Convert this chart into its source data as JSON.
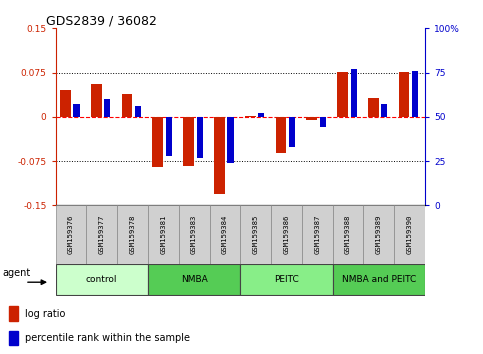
{
  "title": "GDS2839 / 36082",
  "samples": [
    "GSM159376",
    "GSM159377",
    "GSM159378",
    "GSM159381",
    "GSM159383",
    "GSM159384",
    "GSM159385",
    "GSM159386",
    "GSM159387",
    "GSM159388",
    "GSM159389",
    "GSM159390"
  ],
  "log_ratio": [
    0.045,
    0.055,
    0.038,
    -0.085,
    -0.083,
    -0.13,
    0.002,
    -0.062,
    -0.005,
    0.076,
    0.032,
    0.076
  ],
  "percentile_rank": [
    57,
    60,
    56,
    28,
    27,
    24,
    52,
    33,
    44,
    77,
    57,
    76
  ],
  "groups": [
    {
      "label": "control",
      "start": 0,
      "end": 3,
      "color": "#ccffcc"
    },
    {
      "label": "NMBA",
      "start": 3,
      "end": 6,
      "color": "#55cc55"
    },
    {
      "label": "PEITC",
      "start": 6,
      "end": 9,
      "color": "#88ee88"
    },
    {
      "label": "NMBA and PEITC",
      "start": 9,
      "end": 12,
      "color": "#55cc55"
    }
  ],
  "ylim_left": [
    -0.15,
    0.15
  ],
  "ylim_right": [
    0,
    100
  ],
  "yticks_left": [
    -0.15,
    -0.075,
    0,
    0.075,
    0.15
  ],
  "yticks_right": [
    0,
    25,
    50,
    75,
    100
  ],
  "hlines_dotted": [
    0.075,
    -0.075
  ],
  "bar_color_log": "#cc2200",
  "bar_color_pct": "#0000cc",
  "log_bar_width": 0.35,
  "pct_bar_width": 0.2,
  "background_color": "#ffffff",
  "tick_label_color_left": "#cc2200",
  "tick_label_color_right": "#0000cc",
  "sample_box_color": "#d0d0d0",
  "n": 12
}
